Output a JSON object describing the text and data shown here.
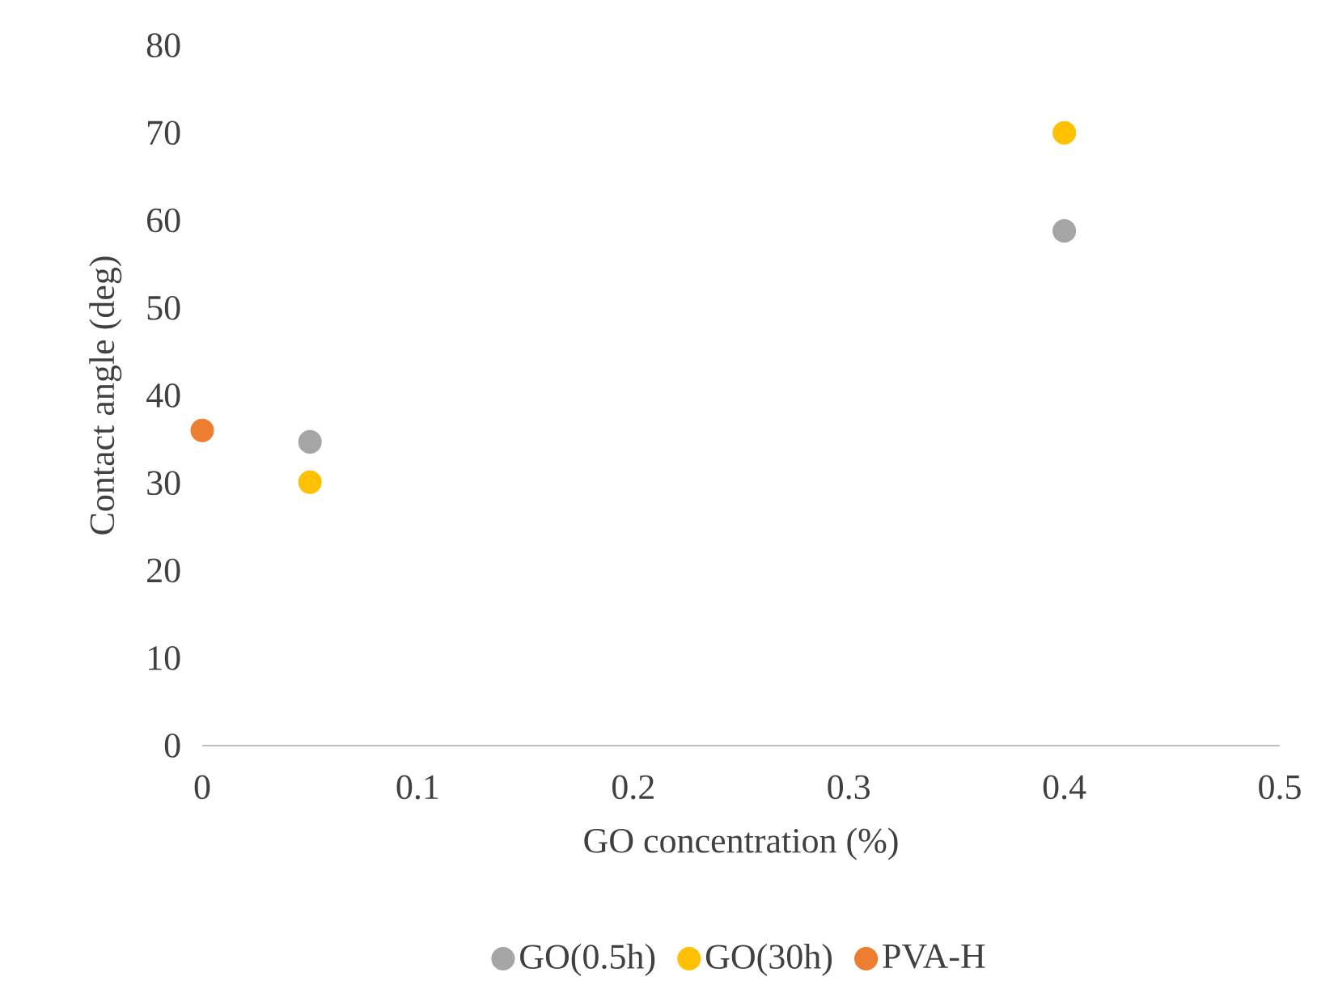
{
  "chart_data": {
    "type": "scatter",
    "xlabel": "GO concentration (%)",
    "ylabel": "Contact angle (deg)",
    "xlim": [
      0,
      0.5
    ],
    "xticks": [
      0,
      0.1,
      0.2,
      0.3,
      0.4,
      0.5
    ],
    "ylim": [
      0,
      80
    ],
    "yticks": [
      0,
      10,
      20,
      30,
      40,
      50,
      60,
      70,
      80
    ],
    "grid": false,
    "legend": "bottom",
    "marker": "circle",
    "series": [
      {
        "name": "GO(0.5h)",
        "color": "#a5a5a5",
        "x": [
          0.05,
          0.4
        ],
        "values": [
          34.7,
          58.8
        ]
      },
      {
        "name": "GO(30h)",
        "color": "#ffc000",
        "x": [
          0.05,
          0.4
        ],
        "values": [
          30.1,
          70.0
        ]
      },
      {
        "name": "PVA-H",
        "color": "#ed7d31",
        "x": [
          0
        ],
        "values": [
          36.0
        ]
      }
    ]
  }
}
